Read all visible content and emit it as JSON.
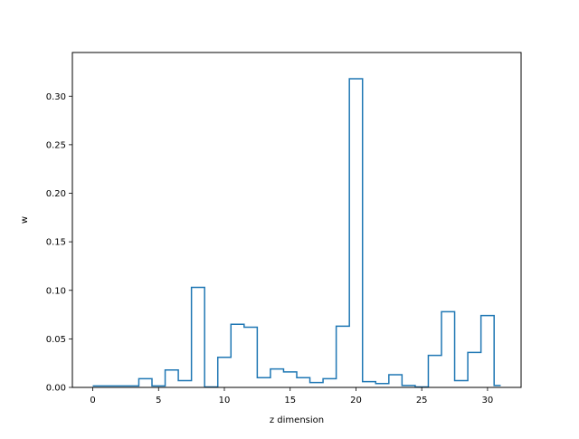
{
  "chart_data": {
    "type": "step",
    "xlabel": "z dimension",
    "ylabel": "w",
    "xlim": [
      -1.55,
      32.55
    ],
    "ylim": [
      0,
      0.345
    ],
    "xticks": [
      0,
      5,
      10,
      15,
      20,
      25,
      30
    ],
    "xtick_labels": [
      "0",
      "5",
      "10",
      "15",
      "20",
      "25",
      "30"
    ],
    "yticks": [
      0.0,
      0.05,
      0.1,
      0.15,
      0.2,
      0.25,
      0.3
    ],
    "ytick_labels": [
      "0.00",
      "0.05",
      "0.10",
      "0.15",
      "0.20",
      "0.25",
      "0.30"
    ],
    "grid": false,
    "line_color": "#1f77b4",
    "x": [
      0,
      1,
      2,
      3,
      4,
      5,
      6,
      7,
      8,
      9,
      10,
      11,
      12,
      13,
      14,
      15,
      16,
      17,
      18,
      19,
      20,
      21,
      22,
      23,
      24,
      25,
      26,
      27,
      28,
      29,
      30,
      31
    ],
    "values": [
      0.0015,
      0.0015,
      0.0015,
      0.0015,
      0.009,
      0.0015,
      0.018,
      0.007,
      0.103,
      0.0005,
      0.031,
      0.065,
      0.062,
      0.01,
      0.019,
      0.016,
      0.01,
      0.005,
      0.009,
      0.063,
      0.318,
      0.006,
      0.004,
      0.013,
      0.002,
      0.0005,
      0.033,
      0.078,
      0.007,
      0.036,
      0.074,
      0.002
    ]
  }
}
